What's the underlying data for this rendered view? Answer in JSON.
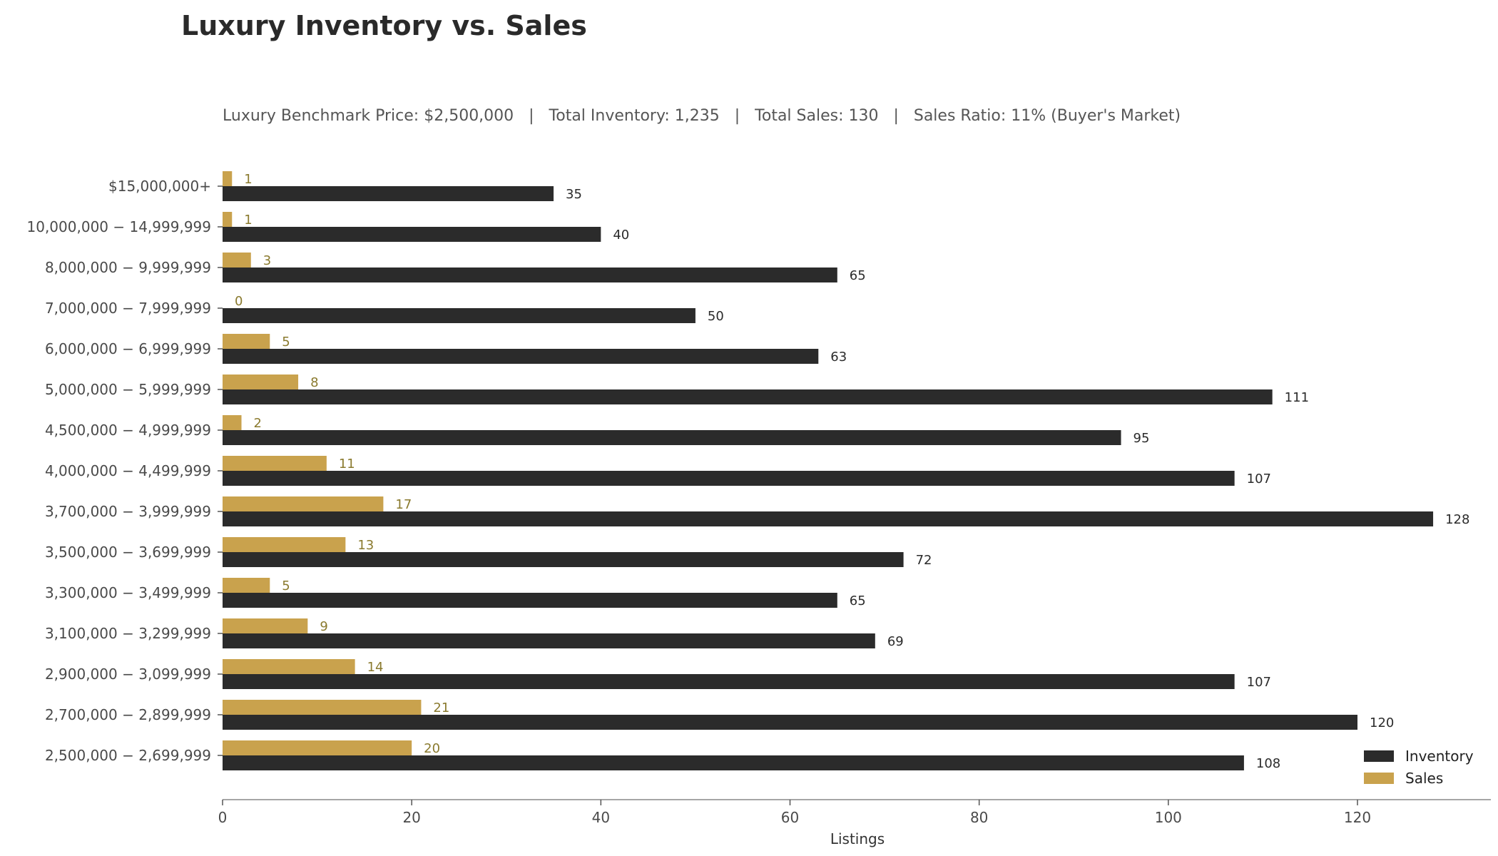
{
  "chart_data": {
    "type": "bar",
    "orientation": "horizontal",
    "title": "Luxury Inventory vs. Sales",
    "subtitle": "Luxury Benchmark Price: $2,500,000   |   Total Inventory: 1,235   |   Total Sales: 130   |   Sales Ratio: 11% (Buyer's Market)",
    "xlabel": "Listings",
    "ylabel": "",
    "xlim": [
      0,
      135
    ],
    "xticks": [
      0,
      20,
      40,
      60,
      80,
      100,
      120
    ],
    "grid": false,
    "legend_position": "bottom-right",
    "categories": [
      "$15,000,000+",
      "10,000,000 − 14,999,999",
      "8,000,000 − 9,999,999",
      "7,000,000 − 7,999,999",
      "6,000,000 − 6,999,999",
      "5,000,000 − 5,999,999",
      "4,500,000 − 4,999,999",
      "4,000,000 − 4,499,999",
      "3,700,000 − 3,999,999",
      "3,500,000 − 3,699,999",
      "3,300,000 − 3,499,999",
      "3,100,000 − 3,299,999",
      "2,900,000 − 3,099,999",
      "2,700,000 − 2,899,999",
      "2,500,000 − 2,699,999"
    ],
    "series": [
      {
        "name": "Inventory",
        "color": "#2b2b2b",
        "values": [
          35,
          40,
          65,
          50,
          63,
          111,
          95,
          107,
          128,
          72,
          65,
          69,
          107,
          120,
          108
        ]
      },
      {
        "name": "Sales",
        "color": "#c9a24d",
        "values": [
          1,
          1,
          3,
          0,
          5,
          8,
          2,
          11,
          17,
          13,
          5,
          9,
          14,
          21,
          20
        ]
      }
    ]
  }
}
